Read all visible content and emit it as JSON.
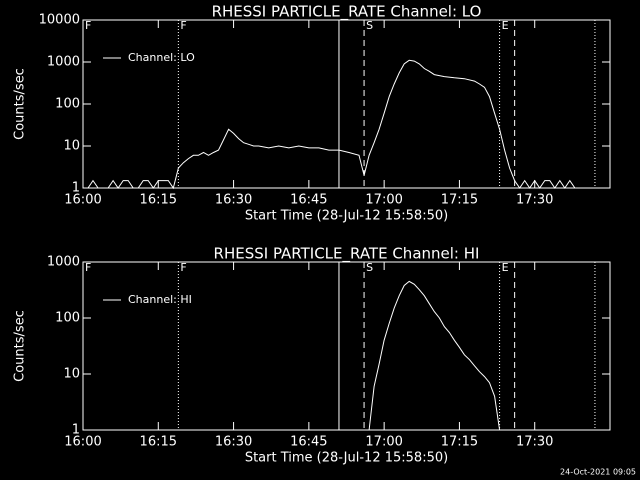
{
  "chart_data": [
    {
      "type": "line",
      "title": "RHESSI PARTICLE_RATE Channel: LO",
      "xlabel": "Start Time (28-Jul-12 15:58:50)",
      "ylabel": "Counts/sec",
      "x": [
        "16:00",
        "16:01",
        "16:02",
        "16:03",
        "16:04",
        "16:05",
        "16:06",
        "16:07",
        "16:08",
        "16:09",
        "16:10",
        "16:11",
        "16:12",
        "16:13",
        "16:14",
        "16:15",
        "16:16",
        "16:17",
        "16:18",
        "16:19",
        "16:20",
        "16:21",
        "16:22",
        "16:23",
        "16:24",
        "16:25",
        "16:26",
        "16:27",
        "16:28",
        "16:29",
        "16:30",
        "16:31",
        "16:32",
        "16:33",
        "16:34",
        "16:35",
        "16:37",
        "16:39",
        "16:41",
        "16:43",
        "16:45",
        "16:47",
        "16:49",
        "16:51",
        "16:53",
        "16:55",
        "16:56",
        "16:57",
        "16:58",
        "16:59",
        "17:00",
        "17:01",
        "17:02",
        "17:03",
        "17:04",
        "17:05",
        "17:06",
        "17:07",
        "17:08",
        "17:09",
        "17:10",
        "17:12",
        "17:14",
        "17:16",
        "17:18",
        "17:19",
        "17:20",
        "17:21",
        "17:22",
        "17:23",
        "17:24",
        "17:25",
        "17:26",
        "17:27",
        "17:28",
        "17:29",
        "17:30",
        "17:31",
        "17:32",
        "17:33",
        "17:34",
        "17:35",
        "17:36",
        "17:37",
        "17:38",
        "17:40",
        "17:42"
      ],
      "series": [
        {
          "name": "Channel: LO",
          "color": "#ffffff",
          "values": [
            1,
            1,
            1.5,
            1,
            1,
            1,
            1.5,
            1,
            1.5,
            1.5,
            1,
            1,
            1.5,
            1.5,
            1,
            1.5,
            1.5,
            1.5,
            1,
            3,
            4,
            5,
            6,
            6,
            7,
            6,
            7,
            8,
            14,
            25,
            20,
            15,
            12,
            11,
            10,
            10,
            9,
            10,
            9,
            10,
            9,
            9,
            8,
            8,
            7,
            6,
            2,
            6,
            12,
            25,
            60,
            150,
            300,
            550,
            900,
            1100,
            1050,
            900,
            700,
            600,
            500,
            450,
            420,
            400,
            350,
            300,
            250,
            150,
            60,
            25,
            8,
            3,
            1.5,
            1,
            1.5,
            1,
            1.5,
            1,
            1.5,
            1.5,
            1,
            1.5,
            1,
            1.5,
            1,
            1,
            1
          ]
        }
      ],
      "xlim": [
        "16:00",
        "17:45"
      ],
      "xticks": [
        "16:00",
        "16:15",
        "16:30",
        "16:45",
        "17:00",
        "17:15",
        "17:30"
      ],
      "ylim": [
        1,
        10000
      ],
      "yticks": [
        1,
        10,
        100,
        1000,
        10000
      ],
      "log_y": true,
      "legend": "upper left",
      "vlines": [
        {
          "x": "16:00",
          "style": "dotted",
          "label": "F"
        },
        {
          "x": "16:19",
          "style": "dotted",
          "label": "F"
        },
        {
          "x": "16:51",
          "style": "solid"
        },
        {
          "x": "16:56",
          "style": "dashed",
          "label": "S"
        },
        {
          "x": "17:23",
          "style": "dotted",
          "label": "E"
        },
        {
          "x": "17:26",
          "style": "dashed"
        },
        {
          "x": "17:42",
          "style": "dotted"
        }
      ]
    },
    {
      "type": "line",
      "title": "RHESSI PARTICLE_RATE Channel: HI",
      "xlabel": "Start Time (28-Jul-12 15:58:50)",
      "ylabel": "Counts/sec",
      "x": [
        "16:57",
        "16:58",
        "16:59",
        "17:00",
        "17:01",
        "17:02",
        "17:03",
        "17:04",
        "17:05",
        "17:06",
        "17:07",
        "17:08",
        "17:09",
        "17:10",
        "17:11",
        "17:12",
        "17:13",
        "17:14",
        "17:15",
        "17:16",
        "17:17",
        "17:18",
        "17:19",
        "17:20",
        "17:21",
        "17:22",
        "17:23"
      ],
      "series": [
        {
          "name": "Channel: HI",
          "color": "#ffffff",
          "values": [
            1,
            6,
            15,
            40,
            80,
            150,
            250,
            380,
            450,
            400,
            320,
            250,
            180,
            130,
            100,
            70,
            55,
            40,
            30,
            22,
            18,
            14,
            11,
            9,
            7,
            4,
            1
          ]
        }
      ],
      "xlim": [
        "16:00",
        "17:45"
      ],
      "xticks": [
        "16:00",
        "16:15",
        "16:30",
        "16:45",
        "17:00",
        "17:15",
        "17:30"
      ],
      "ylim": [
        1,
        1000
      ],
      "yticks": [
        1,
        10,
        100,
        1000
      ],
      "log_y": true,
      "legend": "upper left",
      "vlines": [
        {
          "x": "16:00",
          "style": "dotted",
          "label": "F"
        },
        {
          "x": "16:19",
          "style": "dotted",
          "label": "F"
        },
        {
          "x": "16:51",
          "style": "solid"
        },
        {
          "x": "16:56",
          "style": "dashed",
          "label": "S"
        },
        {
          "x": "17:23",
          "style": "dotted",
          "label": "E"
        },
        {
          "x": "17:26",
          "style": "dashed"
        },
        {
          "x": "17:42",
          "style": "dotted"
        }
      ]
    }
  ],
  "footer": "24-Oct-2021 09:05"
}
